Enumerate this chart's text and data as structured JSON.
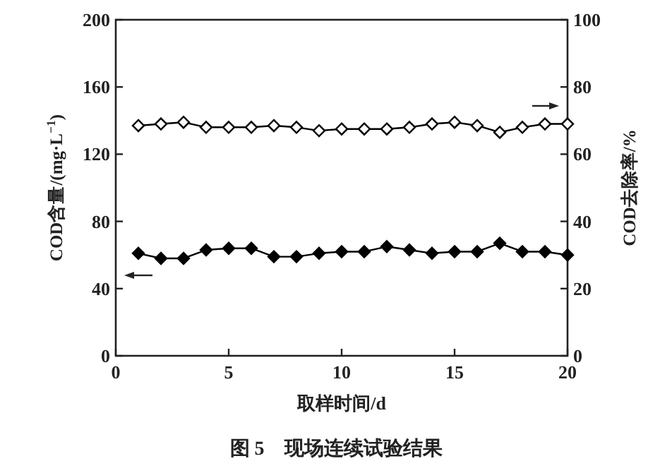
{
  "chart_data": {
    "type": "line",
    "xlabel": "取样时间/d",
    "ylabel": "COD含量/(mg·L$^{−1}$)",
    "y2label": "COD去除率/%",
    "annotations": [
      "图 5　现场连续试验结果"
    ],
    "x": [
      1,
      2,
      3,
      4,
      5,
      6,
      7,
      8,
      9,
      10,
      11,
      12,
      13,
      14,
      15,
      16,
      17,
      18,
      19,
      20
    ],
    "series": [
      {
        "color": "#000000",
        "values": [
          61,
          58,
          58,
          63,
          64,
          64,
          59,
          59,
          61,
          62,
          62,
          65,
          63,
          61,
          62,
          62,
          67,
          62,
          62,
          60
        ]
      },
      {
        "color": "#000000",
        "axis": "y2",
        "values": [
          68.5,
          69,
          69.5,
          68,
          68,
          68,
          68.5,
          68,
          67,
          67.5,
          67.5,
          67.5,
          68,
          69,
          69.5,
          68.5,
          66.5,
          68,
          69,
          69
        ]
      }
    ],
    "xlim": [
      0,
      20
    ],
    "xticks": [
      0,
      5,
      10,
      15,
      20
    ],
    "ylim": [
      0,
      200
    ],
    "yticks": [
      0,
      40,
      80,
      120,
      160,
      200
    ],
    "y2lim": [
      0,
      100
    ],
    "y2ticks": [
      0,
      20,
      40,
      60,
      80,
      100
    ],
    "marker": "diamond",
    "line_style": "solid",
    "grid": false
  }
}
